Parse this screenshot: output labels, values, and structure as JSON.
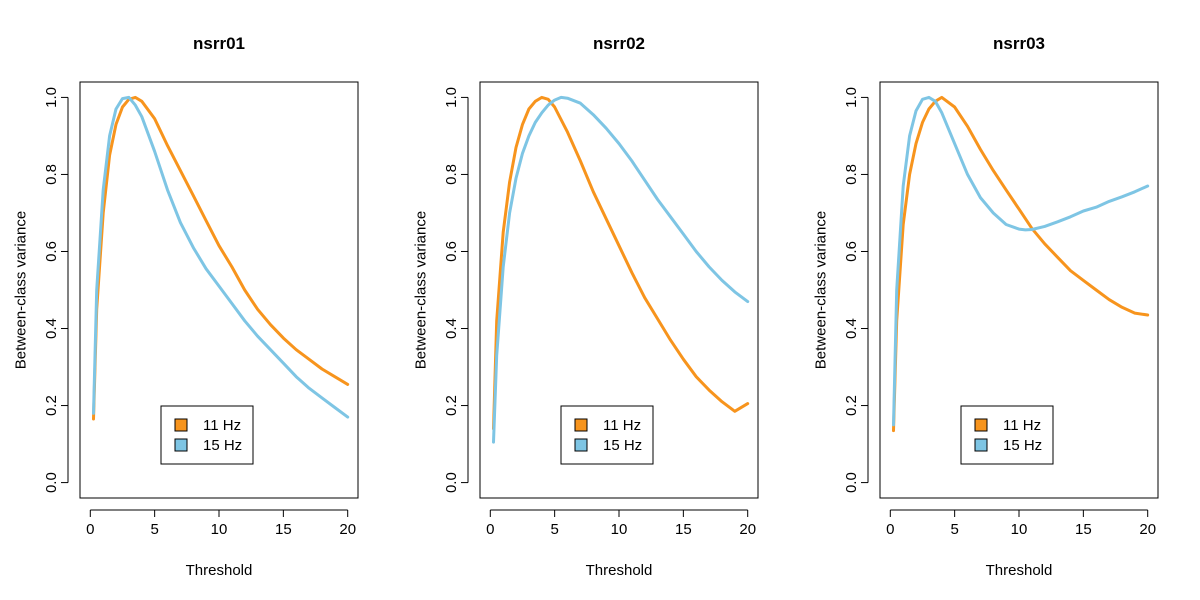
{
  "chart_data": [
    {
      "type": "line",
      "title": "nsrr01",
      "xlabel": "Threshold",
      "ylabel": "Between-class variance",
      "xlim": [
        0,
        20
      ],
      "ylim": [
        0,
        1.0
      ],
      "xticks": [
        "0",
        "5",
        "10",
        "15",
        "20"
      ],
      "yticks": [
        "0.0",
        "0.2",
        "0.4",
        "0.6",
        "0.8",
        "1.0"
      ],
      "legend": "bottom-center",
      "series": [
        {
          "name": "11 Hz",
          "color": "#F7941D",
          "x": [
            0.25,
            0.5,
            1,
            1.5,
            2,
            2.5,
            3,
            3.5,
            4,
            5,
            6,
            7,
            8,
            9,
            10,
            11,
            12,
            13,
            14,
            15,
            16,
            17,
            18,
            19,
            20
          ],
          "y": [
            0.165,
            0.45,
            0.7,
            0.85,
            0.93,
            0.975,
            0.995,
            1.0,
            0.99,
            0.945,
            0.875,
            0.81,
            0.745,
            0.68,
            0.615,
            0.56,
            0.5,
            0.45,
            0.41,
            0.375,
            0.345,
            0.32,
            0.295,
            0.275,
            0.255
          ]
        },
        {
          "name": "15 Hz",
          "color": "#7EC5E4",
          "x": [
            0.25,
            0.5,
            1,
            1.5,
            2,
            2.5,
            3,
            3.5,
            4,
            5,
            6,
            7,
            8,
            9,
            10,
            11,
            12,
            13,
            14,
            15,
            16,
            17,
            18,
            19,
            20
          ],
          "y": [
            0.18,
            0.5,
            0.76,
            0.9,
            0.97,
            0.997,
            1.0,
            0.98,
            0.95,
            0.86,
            0.76,
            0.675,
            0.61,
            0.555,
            0.51,
            0.465,
            0.42,
            0.38,
            0.345,
            0.31,
            0.275,
            0.245,
            0.22,
            0.195,
            0.17
          ]
        }
      ]
    },
    {
      "type": "line",
      "title": "nsrr02",
      "xlabel": "Threshold",
      "ylabel": "Between-class variance",
      "xlim": [
        0,
        20
      ],
      "ylim": [
        0,
        1.0
      ],
      "xticks": [
        "0",
        "5",
        "10",
        "15",
        "20"
      ],
      "yticks": [
        "0.0",
        "0.2",
        "0.4",
        "0.6",
        "0.8",
        "1.0"
      ],
      "legend": "bottom-center",
      "series": [
        {
          "name": "11 Hz",
          "color": "#F7941D",
          "x": [
            0.25,
            0.5,
            1,
            1.5,
            2,
            2.5,
            3,
            3.5,
            4,
            4.5,
            5,
            6,
            7,
            8,
            9,
            10,
            11,
            12,
            13,
            14,
            15,
            16,
            17,
            18,
            19,
            20
          ],
          "y": [
            0.14,
            0.42,
            0.65,
            0.78,
            0.87,
            0.93,
            0.97,
            0.99,
            1.0,
            0.995,
            0.975,
            0.91,
            0.835,
            0.755,
            0.685,
            0.615,
            0.545,
            0.48,
            0.425,
            0.37,
            0.32,
            0.275,
            0.24,
            0.21,
            0.185,
            0.205
          ]
        },
        {
          "name": "15 Hz",
          "color": "#7EC5E4",
          "x": [
            0.25,
            0.5,
            1,
            1.5,
            2,
            2.5,
            3,
            3.5,
            4,
            4.5,
            5,
            5.5,
            6,
            7,
            8,
            9,
            10,
            11,
            12,
            13,
            14,
            15,
            16,
            17,
            18,
            19,
            20
          ],
          "y": [
            0.105,
            0.33,
            0.56,
            0.7,
            0.79,
            0.855,
            0.9,
            0.935,
            0.96,
            0.98,
            0.993,
            1.0,
            0.998,
            0.985,
            0.955,
            0.92,
            0.88,
            0.835,
            0.785,
            0.735,
            0.69,
            0.645,
            0.6,
            0.56,
            0.525,
            0.495,
            0.47
          ]
        }
      ]
    },
    {
      "type": "line",
      "title": "nsrr03",
      "xlabel": "Threshold",
      "ylabel": "Between-class variance",
      "xlim": [
        0,
        20
      ],
      "ylim": [
        0,
        1.0
      ],
      "xticks": [
        "0",
        "5",
        "10",
        "15",
        "20"
      ],
      "yticks": [
        "0.0",
        "0.2",
        "0.4",
        "0.6",
        "0.8",
        "1.0"
      ],
      "legend": "bottom-center",
      "series": [
        {
          "name": "11 Hz",
          "color": "#F7941D",
          "x": [
            0.25,
            0.5,
            1,
            1.5,
            2,
            2.5,
            3,
            3.5,
            4,
            5,
            6,
            7,
            8,
            9,
            10,
            11,
            12,
            13,
            14,
            15,
            16,
            17,
            18,
            19,
            20
          ],
          "y": [
            0.135,
            0.42,
            0.67,
            0.8,
            0.88,
            0.935,
            0.97,
            0.99,
            1.0,
            0.975,
            0.925,
            0.865,
            0.81,
            0.76,
            0.71,
            0.66,
            0.62,
            0.585,
            0.55,
            0.525,
            0.5,
            0.475,
            0.455,
            0.44,
            0.435
          ]
        },
        {
          "name": "15 Hz",
          "color": "#7EC5E4",
          "x": [
            0.25,
            0.5,
            1,
            1.5,
            2,
            2.5,
            3,
            3.5,
            4,
            5,
            6,
            7,
            8,
            9,
            10,
            10.5,
            11,
            12,
            13,
            14,
            15,
            16,
            17,
            18,
            19,
            20
          ],
          "y": [
            0.15,
            0.5,
            0.77,
            0.9,
            0.965,
            0.995,
            1.0,
            0.99,
            0.96,
            0.88,
            0.8,
            0.74,
            0.7,
            0.67,
            0.658,
            0.656,
            0.657,
            0.665,
            0.677,
            0.69,
            0.705,
            0.715,
            0.73,
            0.742,
            0.755,
            0.77
          ]
        }
      ]
    }
  ]
}
